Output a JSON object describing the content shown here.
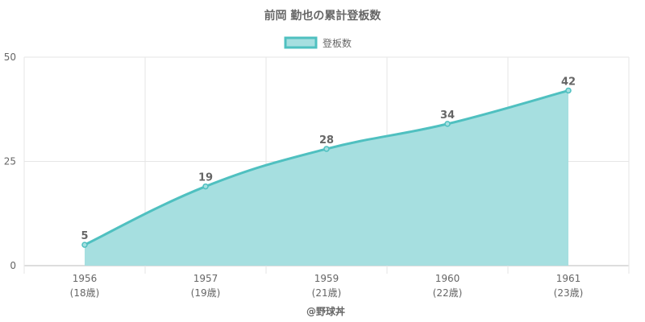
{
  "chart_data": {
    "type": "area",
    "title": "前岡 勤也の累計登板数",
    "legend": {
      "label": "登板数",
      "position": "top"
    },
    "xlabel": "@野球丼",
    "categories": [
      "1956",
      "1957",
      "1959",
      "1960",
      "1961"
    ],
    "category_sublabels": [
      "(18歳)",
      "(19歳)",
      "(21歳)",
      "(22歳)",
      "(23歳)"
    ],
    "series": [
      {
        "name": "登板数",
        "values": [
          5,
          19,
          28,
          34,
          42
        ]
      }
    ],
    "ylim": [
      0,
      50
    ],
    "y_ticks": [
      "0",
      "25",
      "50"
    ],
    "grid": true,
    "colors": {
      "line": "#4fc0c0",
      "fill": "#a6dfe0",
      "grid": "#e6e6e6",
      "axis": "#bbbbbb",
      "text": "#666666"
    }
  }
}
